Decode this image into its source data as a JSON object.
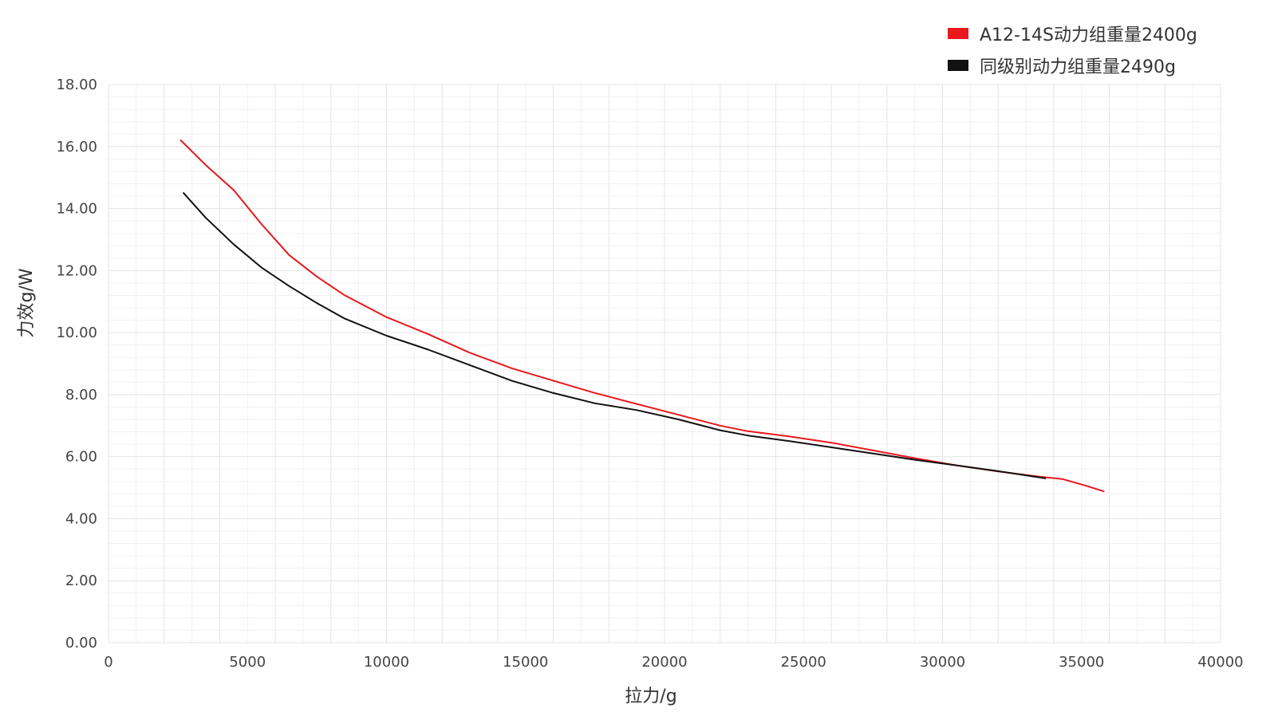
{
  "chart_data": {
    "type": "line",
    "title": "",
    "xlabel": "拉力/g",
    "ylabel": "力效g/W",
    "xlim": [
      0,
      40000
    ],
    "ylim": [
      0,
      18
    ],
    "x_ticks": [
      "0",
      "5000",
      "10000",
      "15000",
      "20000",
      "25000",
      "30000",
      "35000",
      "40000"
    ],
    "y_ticks": [
      "0.00",
      "2.00",
      "4.00",
      "6.00",
      "8.00",
      "10.00",
      "12.00",
      "14.00",
      "16.00",
      "18.00"
    ],
    "grid": true,
    "legend_position": "top-right",
    "series": [
      {
        "name": "A12-14S动力组重量2400g",
        "color": "#e8181c",
        "points": [
          [
            2600,
            16.2
          ],
          [
            3500,
            15.4
          ],
          [
            4500,
            14.6
          ],
          [
            5500,
            13.5
          ],
          [
            6500,
            12.5
          ],
          [
            7500,
            11.8
          ],
          [
            8500,
            11.2
          ],
          [
            10000,
            10.5
          ],
          [
            11500,
            9.95
          ],
          [
            13000,
            9.35
          ],
          [
            14500,
            8.85
          ],
          [
            16000,
            8.45
          ],
          [
            17500,
            8.05
          ],
          [
            19000,
            7.7
          ],
          [
            20500,
            7.35
          ],
          [
            22000,
            7.0
          ],
          [
            23000,
            6.82
          ],
          [
            24500,
            6.65
          ],
          [
            26000,
            6.45
          ],
          [
            27500,
            6.2
          ],
          [
            29000,
            5.95
          ],
          [
            30500,
            5.72
          ],
          [
            32000,
            5.52
          ],
          [
            33500,
            5.35
          ],
          [
            34300,
            5.28
          ],
          [
            35200,
            5.05
          ],
          [
            35800,
            4.88
          ]
        ]
      },
      {
        "name": "同级别动力组重量2490g",
        "color": "#111111",
        "points": [
          [
            2700,
            14.5
          ],
          [
            3500,
            13.7
          ],
          [
            4500,
            12.85
          ],
          [
            5500,
            12.1
          ],
          [
            6500,
            11.5
          ],
          [
            7500,
            10.95
          ],
          [
            8500,
            10.45
          ],
          [
            10000,
            9.9
          ],
          [
            11500,
            9.45
          ],
          [
            13000,
            8.95
          ],
          [
            14500,
            8.45
          ],
          [
            16000,
            8.05
          ],
          [
            17500,
            7.72
          ],
          [
            19000,
            7.5
          ],
          [
            20500,
            7.2
          ],
          [
            22000,
            6.85
          ],
          [
            23000,
            6.68
          ],
          [
            24500,
            6.5
          ],
          [
            26000,
            6.3
          ],
          [
            27500,
            6.1
          ],
          [
            29000,
            5.9
          ],
          [
            30500,
            5.72
          ],
          [
            32000,
            5.53
          ],
          [
            33700,
            5.3
          ]
        ]
      }
    ]
  },
  "legend": {
    "items": [
      {
        "label": "A12-14S动力组重量2400g",
        "color": "#e8181c"
      },
      {
        "label": "同级别动力组重量2490g",
        "color": "#111111"
      }
    ]
  }
}
